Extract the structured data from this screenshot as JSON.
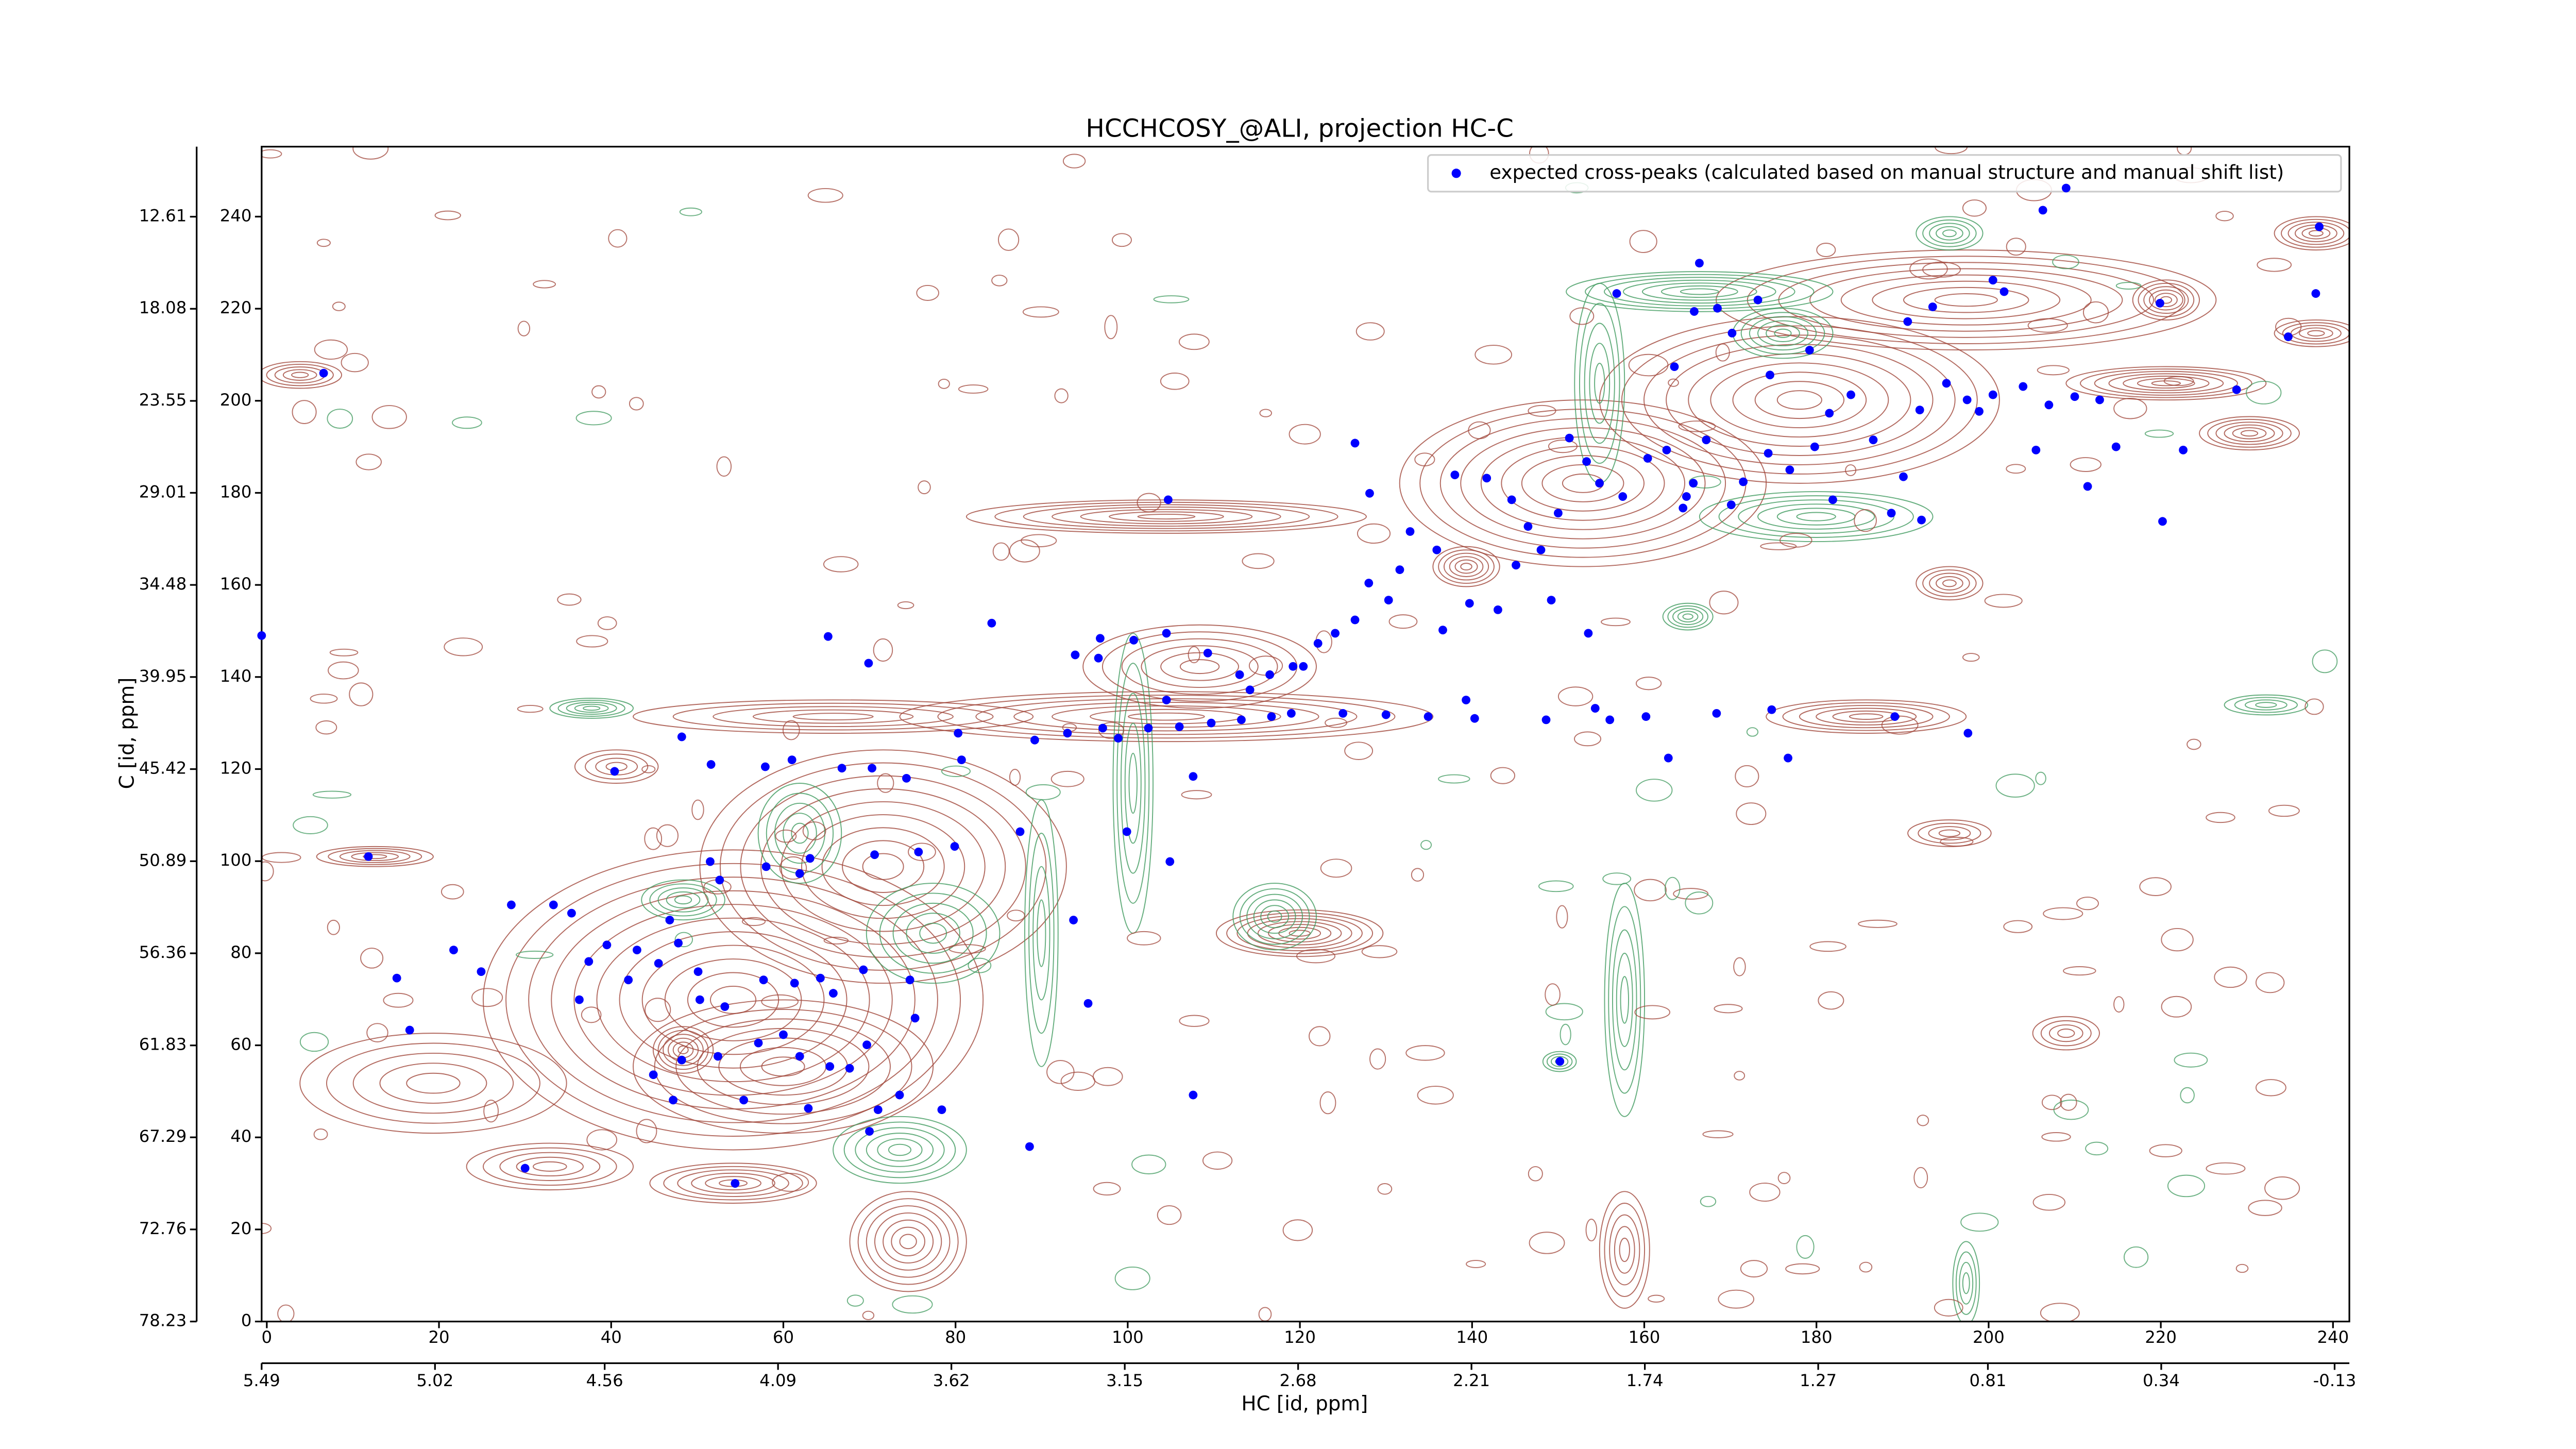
{
  "chart_data": {
    "type": "scatter",
    "title": "HCCHCOSY_@ALI, projection HC-C",
    "xlabel": "HC [id, ppm]",
    "ylabel": "C [id, ppm]",
    "legend": "upper right",
    "xlim": [
      -0.6,
      241.9
    ],
    "ylim": [
      0,
      255.2
    ],
    "xticks": [
      0,
      20,
      40,
      60,
      80,
      100,
      120,
      140,
      160,
      180,
      200,
      220,
      240
    ],
    "yticks": [
      0,
      20,
      40,
      60,
      80,
      100,
      120,
      140,
      160,
      180,
      200,
      220,
      240
    ],
    "x2lim": [
      5.49,
      -0.17
    ],
    "x2ticks": [
      5.49,
      5.02,
      4.56,
      4.09,
      3.62,
      3.15,
      2.68,
      2.21,
      1.74,
      1.27,
      0.81,
      0.34,
      -0.13
    ],
    "y2lim": [
      78.23,
      8.45
    ],
    "y2ticks": [
      78.23,
      72.76,
      67.29,
      61.83,
      56.36,
      50.89,
      45.42,
      39.95,
      34.48,
      29.01,
      23.55,
      18.08,
      12.61
    ],
    "series": [
      {
        "name": "expected cross-peaks (calculated based on manual structure and manual shift list)",
        "color": "#0000ff",
        "x": [
          6.6,
          -0.6,
          11.8,
          15.1,
          16.6,
          30,
          54.4,
          21.7,
          24.9,
          28.4,
          33.3,
          35.4,
          37.4,
          36.3,
          39.5,
          40.4,
          48.2,
          51.6,
          61,
          57.9,
          66.8,
          70.3,
          74.3,
          80.3,
          80.7,
          65.2,
          69.9,
          84.2,
          87.5,
          79.9,
          75.7,
          70.6,
          63.1,
          58,
          61.9,
          52.6,
          51.5,
          46.8,
          47.8,
          43,
          45.5,
          42,
          50.1,
          50.3,
          53.2,
          57.7,
          61.3,
          64.3,
          65.8,
          69.3,
          74.7,
          75.3,
          69.7,
          67.7,
          65.4,
          61.9,
          60,
          57.1,
          52.4,
          48.2,
          44.9,
          47.2,
          55.4,
          62.9,
          71,
          73.5,
          70,
          78.4,
          88.6,
          95.4,
          93.7,
          99.9,
          104.9,
          107.6,
          107.6,
          89.2,
          93,
          97.1,
          102.4,
          106,
          109.7,
          113.2,
          116.7,
          119,
          125,
          130,
          134.9,
          140.3,
          148.6,
          156,
          160.2,
          162.8,
          168.4,
          174.8,
          176.7,
          189.1,
          197.6,
          93.9,
          96.8,
          100.7,
          104.5,
          109.3,
          113,
          116.5,
          119.2,
          122.1,
          124.1,
          126.4,
          128,
          130.3,
          131.6,
          132.8,
          128.1,
          126.4,
          104.7,
          135.9,
          138,
          141.7,
          144.6,
          146.5,
          145.1,
          143,
          139.7,
          136.6,
          151.3,
          153.3,
          154.8,
          157.5,
          160.4,
          162.6,
          167.2,
          165.7,
          164.9,
          170.1,
          171.5,
          174.4,
          176.9,
          179.8,
          181.5,
          184,
          186.6,
          190.1,
          192,
          195.1,
          197.5,
          200.5,
          204,
          207,
          210,
          205.5,
          211.5,
          220.2,
          222.6,
          228.8,
          234.8,
          238.4,
          238,
          219.9,
          206.3,
          209,
          166.4,
          168.5,
          170.2,
          173.2,
          165.8,
          156.8,
          163.5,
          174.6,
          179.2,
          190.6,
          193.5,
          200.5,
          201.8,
          150,
          148,
          149.2,
          153.5,
          154.3,
          164.5,
          181.9,
          139.3,
          120.4,
          114.2,
          104.5,
          96.6,
          98.9,
          150.2,
          188.7,
          192.2,
          214.8,
          198.9,
          212.9
        ],
        "values": [
          206,
          149,
          101,
          74.6,
          63.3,
          33.3,
          30,
          80.7,
          76,
          90.5,
          90.5,
          88.7,
          78.2,
          69.9,
          81.8,
          119.5,
          127,
          121,
          122,
          120.5,
          120.2,
          120.2,
          118,
          127.8,
          122,
          148.8,
          143,
          151.7,
          106.4,
          103.2,
          102,
          101.4,
          100.6,
          98.8,
          97.3,
          95.9,
          99.9,
          87.2,
          82.2,
          80.7,
          77.8,
          74.2,
          76,
          69.9,
          68.4,
          74.2,
          73.5,
          74.6,
          71.3,
          76.4,
          74.2,
          65.9,
          60.1,
          55,
          55.4,
          57.6,
          62.3,
          60.5,
          57.6,
          56.8,
          53.6,
          48.1,
          48.1,
          46.3,
          46,
          49.2,
          41.3,
          46,
          38,
          69.1,
          87.2,
          106.4,
          99.9,
          118.4,
          49.2,
          126.3,
          127.8,
          128.9,
          128.9,
          129.2,
          130,
          130.7,
          131.4,
          132.1,
          132.1,
          131.8,
          131.4,
          131,
          130.7,
          130.7,
          131.4,
          122.4,
          132.1,
          132.9,
          122.4,
          131.4,
          127.8,
          144.8,
          148.4,
          148,
          149.5,
          145.2,
          140.5,
          140.5,
          142.3,
          147.3,
          149.5,
          152.4,
          160.4,
          156.7,
          163.3,
          171.6,
          179.9,
          190.8,
          178.5,
          167.6,
          183.9,
          183.2,
          178.5,
          172.7,
          164.3,
          154.6,
          156,
          150.2,
          191.9,
          186.8,
          182.1,
          179.2,
          187.5,
          189.3,
          191.5,
          182.1,
          179.2,
          177.4,
          182.4,
          188.6,
          185,
          190,
          197.3,
          201.3,
          191.5,
          183.5,
          198,
          203.8,
          200.2,
          201.3,
          203.1,
          199.1,
          200.9,
          189.3,
          181.4,
          173.8,
          189.3,
          202.4,
          213.9,
          237.8,
          223.3,
          221.2,
          241.4,
          246.2,
          229.9,
          220.1,
          214.7,
          221.9,
          219.4,
          223.3,
          207.4,
          205.6,
          211,
          217.2,
          220.4,
          226.2,
          223.7,
          175.6,
          167.6,
          156.7,
          149.5,
          133.2,
          176.7,
          178.5,
          135,
          142.3,
          137.2,
          135,
          144.1,
          126.7,
          56.5,
          175.6,
          174.1,
          190,
          197.7,
          200.2
        ]
      }
    ]
  }
}
